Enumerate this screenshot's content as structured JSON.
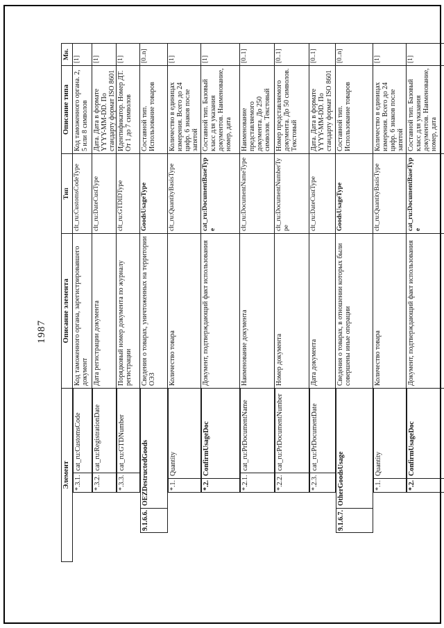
{
  "page": {
    "number": "1987"
  },
  "table": {
    "headers": {
      "element": "Элемент",
      "element_desc": "Описание элемента",
      "type": "Тип",
      "type_desc": "Описание типа",
      "mult": "Мн."
    },
    "rows": [
      {
        "num": "*.3.1.",
        "name": "cat_ru:CustomsCode",
        "level": "item",
        "bold": false,
        "desc": "Код таможенного органа, зарегистрировавшего документ",
        "type": "clt_ru:CustomsCodeType",
        "type_desc": "Код таможенного органа. 2, 5 или 8 символов",
        "mult": "[1]"
      },
      {
        "num": "*.3.2.",
        "name": "cat_ru:RegistrationDate",
        "level": "item",
        "bold": false,
        "desc": "Дата регистрации документа",
        "type": "clt_ru:DateCustType",
        "type_desc": "Дата. Дата в формате YYYY-MM-DD. По стандарту формат ISO 8601",
        "mult": "[1]"
      },
      {
        "num": "*.3.3.",
        "name": "cat_ru:GTDNumber",
        "level": "item",
        "bold": false,
        "desc": "Порядковый номер документа по журналу регистрации",
        "type": "clt_ru:GTDIDType",
        "type_desc": "Идентификатор. Номер ДТ. От 1 до 7 символов",
        "mult": "[1]"
      },
      {
        "num": "9.1.6.6.",
        "name": "OEZDestructedGoods",
        "level": "section",
        "bold": true,
        "desc": "Сведения о товарах, уничтоженных на территории ОЭЗ",
        "type": "GoodsUsageType",
        "type_desc": "Составной тип. Использование товаров",
        "mult": "[0..n]"
      },
      {
        "num": "*.1.",
        "name": "Quantity",
        "level": "item",
        "bold": false,
        "desc": "Количество товара",
        "type": "clt_ru:QuantityBasisType",
        "type_desc": "Количество в единицах измерения. Всего до 24 цифр. 6 знаков после запятой",
        "mult": "[1]"
      },
      {
        "num": "*.2.",
        "name": "ConfirmUsageDoc",
        "level": "item",
        "bold": true,
        "desc": "Документ, подтверждающий факт использования",
        "type": "cat_ru:DocumentBaseType",
        "type_desc": "Составной тип. Базовый класс для указания документов. Наименование, номер, дата",
        "mult": "[1]"
      },
      {
        "num": "*.2.1.",
        "name": "cat_ru:PrDocumentName",
        "level": "item",
        "bold": false,
        "desc": "Наименование документа",
        "type": "clt_ru:DocumentNameType",
        "type_desc": "Наименование представляемого документа. До 250 символов. Текстовый",
        "mult": "[0..1]"
      },
      {
        "num": "*.2.2.",
        "name": "cat_ru:PrDocumentNumber",
        "level": "item",
        "bold": false,
        "desc": "Номер документа",
        "type": "clt_ru:DocumentNumberType",
        "type_desc": "Номер представляемого документа. До 50 символов. Текстовый",
        "mult": "[0..1]"
      },
      {
        "num": "*.2.3.",
        "name": "cat_ru:PrDocumentDate",
        "level": "item",
        "bold": false,
        "desc": "Дата документа",
        "type": "clt_ru:DateCustType",
        "type_desc": "Дата. Дата в формате YYYY-MM-DD. По стандарту формат ISO 8601",
        "mult": "[0..1]"
      },
      {
        "num": "9.1.6.7.",
        "name": "OtherGoodsUsage",
        "level": "section",
        "bold": true,
        "desc": "Сведения о товарах, в отношении которых были совершены иные операции",
        "type": "GoodsUsageType",
        "type_desc": "Составной тип. Использование товаров",
        "mult": "[0..n]"
      },
      {
        "num": "*.1.",
        "name": "Quantity",
        "level": "item",
        "bold": false,
        "desc": "Количество товара",
        "type": "clt_ru:QuantityBasisType",
        "type_desc": "Количество в единицах измерения. Всего до 24 цифр. 6 знаков после запятой",
        "mult": "[1]"
      },
      {
        "num": "*.2.",
        "name": "ConfirmUsageDoc",
        "level": "item",
        "bold": true,
        "desc": "Документ, подтверждающий факт использования",
        "type": "cat_ru:DocumentBaseType",
        "type_desc": "Составной тип. Базовый класс для указания документов. Наименование, номер, дата",
        "mult": "[1]"
      }
    ]
  }
}
